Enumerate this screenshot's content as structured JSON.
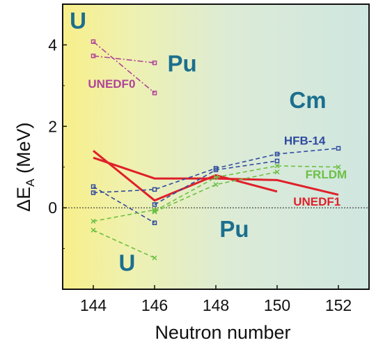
{
  "chart_data": {
    "type": "line",
    "xlabel": "Neutron number",
    "ylabel_main": "ΔE",
    "ylabel_sub": "A",
    "ylabel_unit": " (MeV)",
    "xlim": [
      143,
      153
    ],
    "ylim": [
      -2,
      5
    ],
    "xticks": [
      144,
      146,
      148,
      150,
      152
    ],
    "yticks": [
      0,
      2,
      4
    ],
    "zero_line": true,
    "background": "gradient yellow to pale teal",
    "region_labels": [
      {
        "text": "U",
        "x": 143.5,
        "y": 4.4
      },
      {
        "text": "Pu",
        "x": 146.9,
        "y": 3.35
      },
      {
        "text": "Cm",
        "x": 151.0,
        "y": 2.45
      },
      {
        "text": "Pu",
        "x": 148.6,
        "y": -0.72
      },
      {
        "text": "U",
        "x": 145.1,
        "y": -1.55
      }
    ],
    "model_labels": [
      {
        "text": "UNEDF0",
        "x": 144.6,
        "y": 2.95,
        "color": "#b0449a"
      },
      {
        "text": "HFB-14",
        "x": 150.9,
        "y": 1.55,
        "color": "#2f4aa0"
      },
      {
        "text": "FRLDM",
        "x": 151.6,
        "y": 0.72,
        "color": "#6dbf45"
      },
      {
        "text": "UNEDF1",
        "x": 151.3,
        "y": 0.05,
        "color": "#e0202a"
      }
    ],
    "series": [
      {
        "model": "UNEDF0",
        "color": "#b0449a",
        "style": "dashdot",
        "marker": "square",
        "x": [
          144,
          146
        ],
        "y": [
          4.08,
          2.82
        ]
      },
      {
        "model": "UNEDF0",
        "color": "#b0449a",
        "style": "dashdot",
        "marker": "square",
        "x": [
          144,
          146
        ],
        "y": [
          3.73,
          3.56
        ]
      },
      {
        "model": "UNEDF1",
        "color": "#e0202a",
        "style": "solid",
        "marker": "none",
        "x": [
          144,
          146,
          148,
          150,
          152
        ],
        "y": [
          1.23,
          0.72,
          0.72,
          0.68,
          0.32
        ]
      },
      {
        "model": "UNEDF1",
        "color": "#e0202a",
        "style": "solid",
        "marker": "none",
        "x": [
          144,
          146,
          148,
          150
        ],
        "y": [
          1.4,
          0.18,
          0.8,
          0.4
        ]
      },
      {
        "model": "HFB-14",
        "color": "#2f4aa0",
        "style": "dashed",
        "marker": "square",
        "x": [
          144,
          146,
          148,
          150,
          152
        ],
        "y": [
          0.37,
          0.45,
          0.97,
          1.32,
          1.46
        ]
      },
      {
        "model": "HFB-14",
        "color": "#2f4aa0",
        "style": "dashed",
        "marker": "square",
        "x": [
          144,
          146
        ],
        "y": [
          0.52,
          -0.37
        ]
      },
      {
        "model": "HFB-14",
        "color": "#2f4aa0",
        "style": "dashed",
        "marker": "square",
        "x": [
          146,
          148,
          150
        ],
        "y": [
          0.08,
          0.93,
          1.15
        ]
      },
      {
        "model": "FRLDM",
        "color": "#6dbf45",
        "style": "dashed",
        "marker": "x",
        "x": [
          144,
          146
        ],
        "y": [
          -0.33,
          -0.05
        ]
      },
      {
        "model": "FRLDM",
        "color": "#6dbf45",
        "style": "dashed",
        "marker": "x",
        "x": [
          144,
          146
        ],
        "y": [
          -0.55,
          -1.23
        ]
      },
      {
        "model": "FRLDM",
        "color": "#6dbf45",
        "style": "dashed",
        "marker": "x",
        "x": [
          146,
          148,
          150,
          152
        ],
        "y": [
          -0.08,
          0.75,
          1.03,
          1.0
        ]
      },
      {
        "model": "FRLDM",
        "color": "#6dbf45",
        "style": "dashed",
        "marker": "x",
        "x": [
          146,
          148,
          150
        ],
        "y": [
          -0.1,
          0.57,
          0.88
        ]
      }
    ]
  }
}
